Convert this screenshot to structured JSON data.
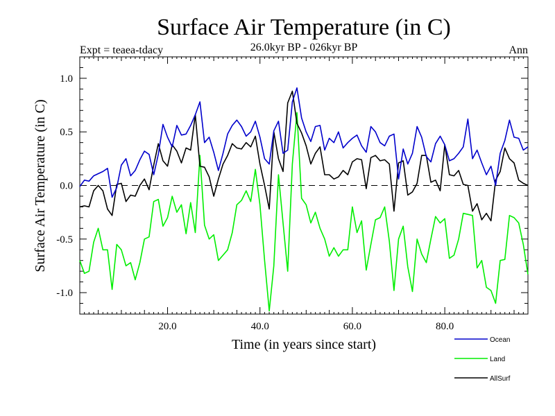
{
  "chart_data": {
    "type": "line",
    "title": "Surface Air Temperature (in C)",
    "subtitle": "26.0kyr BP - 026kyr BP",
    "left_label": "Expt = teaea-tdacy",
    "right_label": "Ann",
    "xlabel": "Time (in years since start)",
    "ylabel": "Surface Air Temperature (in C)",
    "xlim": [
      1,
      98
    ],
    "ylim": [
      -1.2,
      1.2
    ],
    "x_ticks": [
      20,
      40,
      60,
      80
    ],
    "x_tick_labels": [
      "20.0",
      "40.0",
      "60.0",
      "80.0"
    ],
    "y_ticks": [
      1.0,
      0.5,
      0.0,
      -0.5,
      -1.0
    ],
    "y_tick_labels": [
      "1.0",
      "0.5",
      "0.0",
      "-0.5",
      "-1.0"
    ],
    "reference_line": 0.0,
    "legend_position": "bottom-right",
    "series": [
      {
        "name": "Ocean",
        "color": "#0000cc",
        "values": [
          -0.01,
          0.05,
          0.04,
          0.09,
          0.11,
          0.13,
          0.16,
          -0.11,
          -0.02,
          0.19,
          0.25,
          0.09,
          0.14,
          0.24,
          0.32,
          0.29,
          0.1,
          0.29,
          0.57,
          0.45,
          0.36,
          0.56,
          0.47,
          0.48,
          0.56,
          0.66,
          0.78,
          0.4,
          0.45,
          0.31,
          0.14,
          0.3,
          0.48,
          0.56,
          0.61,
          0.55,
          0.46,
          0.5,
          0.6,
          0.45,
          0.25,
          0.2,
          0.51,
          0.6,
          0.3,
          0.33,
          0.78,
          0.91,
          0.63,
          0.5,
          0.41,
          0.55,
          0.56,
          0.33,
          0.44,
          0.4,
          0.5,
          0.35,
          0.4,
          0.44,
          0.47,
          0.37,
          0.31,
          0.55,
          0.5,
          0.4,
          0.37,
          0.46,
          0.48,
          0.06,
          0.34,
          0.2,
          0.3,
          0.55,
          0.45,
          0.27,
          0.22,
          0.39,
          0.46,
          0.38,
          0.23,
          0.25,
          0.3,
          0.36,
          0.62,
          0.25,
          0.33,
          0.21,
          0.1,
          0.18,
          0.0,
          0.3,
          0.42,
          0.61,
          0.45,
          0.44,
          0.33,
          0.36
        ],
        "values_note": "one value per year, x = 1..98"
      },
      {
        "name": "Land",
        "color": "#00ee00",
        "values": [
          -0.7,
          -0.82,
          -0.8,
          -0.53,
          -0.4,
          -0.6,
          -0.6,
          -0.97,
          -0.55,
          -0.6,
          -0.75,
          -0.72,
          -0.88,
          -0.72,
          -0.5,
          -0.48,
          -0.15,
          -0.13,
          -0.38,
          -0.3,
          -0.1,
          -0.25,
          -0.18,
          -0.45,
          -0.16,
          -0.44,
          0.28,
          -0.37,
          -0.5,
          -0.46,
          -0.7,
          -0.65,
          -0.6,
          -0.44,
          -0.18,
          -0.14,
          -0.05,
          -0.15,
          0.15,
          -0.18,
          -0.7,
          -1.17,
          -0.75,
          0.1,
          -0.35,
          -0.8,
          0.2,
          0.68,
          -0.12,
          -0.18,
          -0.35,
          -0.25,
          -0.4,
          -0.5,
          -0.66,
          -0.58,
          -0.66,
          -0.6,
          -0.6,
          -0.2,
          -0.44,
          -0.33,
          -0.79,
          -0.55,
          -0.32,
          -0.3,
          -0.2,
          -0.52,
          -0.98,
          -0.5,
          -0.38,
          -0.76,
          -0.99,
          -0.5,
          -0.64,
          -0.72,
          -0.5,
          -0.29,
          -0.35,
          -0.31,
          -0.68,
          -0.65,
          -0.5,
          -0.26,
          -0.27,
          -0.28,
          -0.77,
          -0.7,
          -0.95,
          -0.98,
          -1.1,
          -0.7,
          -0.69,
          -0.28,
          -0.3,
          -0.35,
          -0.55,
          -0.83
        ],
        "values_note": "one value per year, x = 1..98"
      },
      {
        "name": "AllSurf",
        "color": "#000000",
        "values": [
          -0.2,
          -0.19,
          -0.2,
          -0.05,
          0.0,
          -0.05,
          -0.22,
          -0.28,
          0.01,
          0.02,
          -0.15,
          -0.09,
          -0.1,
          0.0,
          0.06,
          -0.04,
          0.19,
          0.39,
          0.23,
          0.18,
          0.38,
          0.32,
          0.21,
          0.35,
          0.33,
          0.66,
          0.18,
          0.17,
          0.08,
          -0.1,
          0.06,
          0.2,
          0.28,
          0.39,
          0.35,
          0.34,
          0.4,
          0.36,
          0.46,
          0.2,
          0.0,
          -0.22,
          0.5,
          0.25,
          0.13,
          0.77,
          0.88,
          0.58,
          0.49,
          0.37,
          0.2,
          0.3,
          0.36,
          0.1,
          0.1,
          0.06,
          0.08,
          0.14,
          0.1,
          0.22,
          0.25,
          0.24,
          -0.03,
          0.26,
          0.28,
          0.23,
          0.24,
          0.2,
          -0.24,
          0.21,
          0.23,
          -0.09,
          -0.06,
          0.02,
          0.28,
          0.28,
          0.03,
          0.05,
          -0.05,
          0.38,
          0.1,
          0.09,
          0.14,
          0.01,
          0.0,
          -0.24,
          -0.17,
          -0.32,
          -0.26,
          -0.33,
          0.05,
          0.13,
          0.35,
          0.25,
          0.21,
          0.05,
          0.02,
          0.0
        ],
        "values_note": "one value per year, x = 1..98"
      }
    ]
  }
}
